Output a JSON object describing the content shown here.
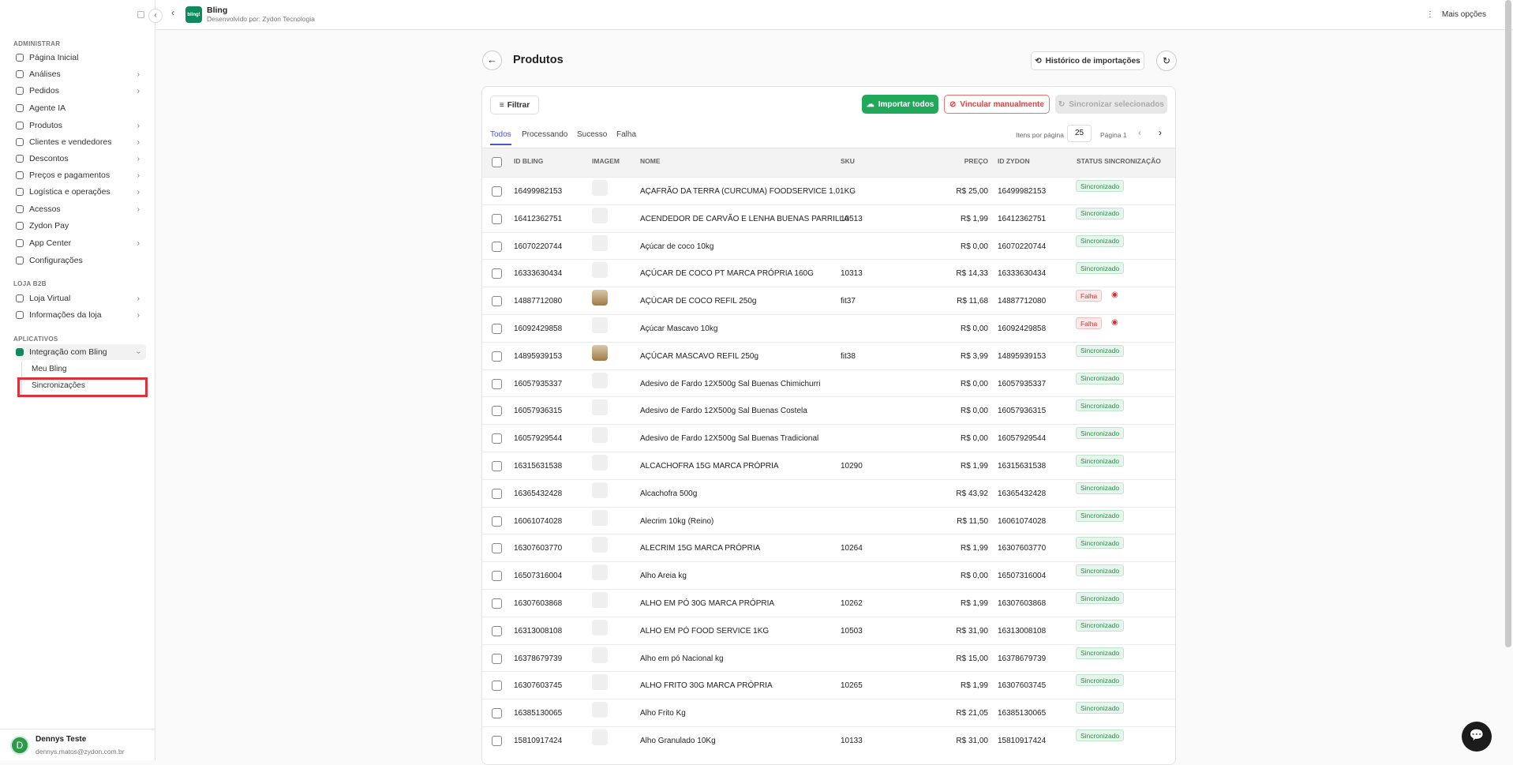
{
  "topbar": {
    "app": "Bling",
    "developer": "Desenvolvido por: Zydon Tecnologia",
    "logo": "bling!",
    "more": "Mais opções"
  },
  "sidebar": {
    "sections": [
      {
        "title": "ADMINISTRAR",
        "items": [
          {
            "label": "Página Inicial"
          },
          {
            "label": "Análises",
            "expandable": true
          },
          {
            "label": "Pedidos",
            "expandable": true
          },
          {
            "label": "Agente IA"
          },
          {
            "label": "Produtos",
            "expandable": true
          },
          {
            "label": "Clientes e vendedores",
            "expandable": true
          },
          {
            "label": "Descontos",
            "expandable": true
          },
          {
            "label": "Preços e pagamentos",
            "expandable": true
          },
          {
            "label": "Logística e operações",
            "expandable": true
          },
          {
            "label": "Acessos",
            "expandable": true
          },
          {
            "label": "Zydon Pay"
          },
          {
            "label": "App Center",
            "expandable": true
          },
          {
            "label": "Configurações"
          }
        ]
      },
      {
        "title": "LOJA B2B",
        "items": [
          {
            "label": "Loja Virtual",
            "expandable": true
          },
          {
            "label": "Informações da loja",
            "expandable": true
          }
        ]
      },
      {
        "title": "APLICATIVOS",
        "items": [
          {
            "label": "Integração com Bling",
            "open": true,
            "children": [
              "Meu Bling",
              "Sincronizações"
            ]
          }
        ]
      }
    ],
    "user": {
      "initial": "D",
      "name": "Dennys Teste",
      "email": "dennys.matos@zydon.com.br"
    }
  },
  "page": {
    "title": "Produtos",
    "history": "Histórico de importações",
    "filter": "Filtrar",
    "import_all": "Importar todos",
    "link_manual": "Vincular manualmente",
    "sync_selected": "Sincronizar selecionados",
    "tabs": [
      "Todos",
      "Processando",
      "Sucesso",
      "Falha"
    ],
    "per_page_label": "Itens por página",
    "per_page": 25,
    "page_label": "Página 1"
  },
  "table": {
    "columns": [
      "ID BLING",
      "IMAGEM",
      "NOME",
      "SKU",
      "PREÇO",
      "ID ZYDON",
      "STATUS SINCRONIZAÇÃO"
    ],
    "rows": [
      {
        "id": "16499982153",
        "name": "AÇAFRÃO DA TERRA (CURCUMA) FOODSERVICE 1,01KG",
        "price": "R$ 25,00",
        "zydon": "16499982153",
        "status": "Sincronizado"
      },
      {
        "id": "16412362751",
        "name": "ACENDEDOR DE CARVÃO E LENHA BUENAS PARRILLA",
        "sku": "10513",
        "price": "R$ 1,99",
        "zydon": "16412362751",
        "status": "Sincronizado"
      },
      {
        "id": "16070220744",
        "name": "Açúcar de coco 10kg",
        "price": "R$ 0,00",
        "zydon": "16070220744",
        "status": "Sincronizado"
      },
      {
        "id": "16333630434",
        "name": "AÇÚCAR DE COCO PT MARCA PRÓPRIA 160G",
        "sku": "10313",
        "price": "R$ 14,33",
        "zydon": "16333630434",
        "status": "Sincronizado"
      },
      {
        "id": "14887712080",
        "name": "AÇÚCAR DE COCO REFIL 250g",
        "sku": "fit37",
        "price": "R$ 11,68",
        "zydon": "14887712080",
        "status": "Falha",
        "has_image": true
      },
      {
        "id": "16092429858",
        "name": "Açúcar Mascavo 10kg",
        "price": "R$ 0,00",
        "zydon": "16092429858",
        "status": "Falha"
      },
      {
        "id": "14895939153",
        "name": "AÇÚCAR MASCAVO REFIL 250g",
        "sku": "fit38",
        "price": "R$ 3,99",
        "zydon": "14895939153",
        "status": "Sincronizado",
        "has_image": true
      },
      {
        "id": "16057935337",
        "name": "Adesivo de Fardo 12X500g Sal Buenas Chimichurri",
        "price": "R$ 0,00",
        "zydon": "16057935337",
        "status": "Sincronizado"
      },
      {
        "id": "16057936315",
        "name": "Adesivo de Fardo 12X500g Sal Buenas Costela",
        "price": "R$ 0,00",
        "zydon": "16057936315",
        "status": "Sincronizado"
      },
      {
        "id": "16057929544",
        "name": "Adesivo de Fardo 12X500g Sal Buenas Tradicional",
        "price": "R$ 0,00",
        "zydon": "16057929544",
        "status": "Sincronizado"
      },
      {
        "id": "16315631538",
        "name": "ALCACHOFRA 15G MARCA PRÓPRIA",
        "sku": "10290",
        "price": "R$ 1,99",
        "zydon": "16315631538",
        "status": "Sincronizado"
      },
      {
        "id": "16365432428",
        "name": "Alcachofra 500g",
        "price": "R$ 43,92",
        "zydon": "16365432428",
        "status": "Sincronizado"
      },
      {
        "id": "16061074028",
        "name": "Alecrim 10kg (Reino)",
        "price": "R$ 11,50",
        "zydon": "16061074028",
        "status": "Sincronizado"
      },
      {
        "id": "16307603770",
        "name": "ALECRIM 15G MARCA PRÓPRIA",
        "sku": "10264",
        "price": "R$ 1,99",
        "zydon": "16307603770",
        "status": "Sincronizado"
      },
      {
        "id": "16507316004",
        "name": "Alho Areia kg",
        "price": "R$ 0,00",
        "zydon": "16507316004",
        "status": "Sincronizado"
      },
      {
        "id": "16307603868",
        "name": "ALHO EM PÓ 30G MARCA PRÓPRIA",
        "sku": "10262",
        "price": "R$ 1,99",
        "zydon": "16307603868",
        "status": "Sincronizado"
      },
      {
        "id": "16313008108",
        "name": "ALHO EM PÓ FOOD SERVICE 1KG",
        "sku": "10503",
        "price": "R$ 31,90",
        "zydon": "16313008108",
        "status": "Sincronizado"
      },
      {
        "id": "16378679739",
        "name": "Alho em pó Nacional kg",
        "price": "R$ 15,00",
        "zydon": "16378679739",
        "status": "Sincronizado"
      },
      {
        "id": "16307603745",
        "name": "ALHO FRITO 30G MARCA PRÓPRIA",
        "sku": "10265",
        "price": "R$ 1,99",
        "zydon": "16307603745",
        "status": "Sincronizado"
      },
      {
        "id": "16385130065",
        "name": "Alho Frito Kg",
        "price": "R$ 21,05",
        "zydon": "16385130065",
        "status": "Sincronizado"
      },
      {
        "id": "15810917424",
        "name": "Alho Granulado 10Kg",
        "sku": "10133",
        "price": "R$ 31,00",
        "zydon": "15810917424",
        "status": "Sincronizado"
      }
    ]
  }
}
